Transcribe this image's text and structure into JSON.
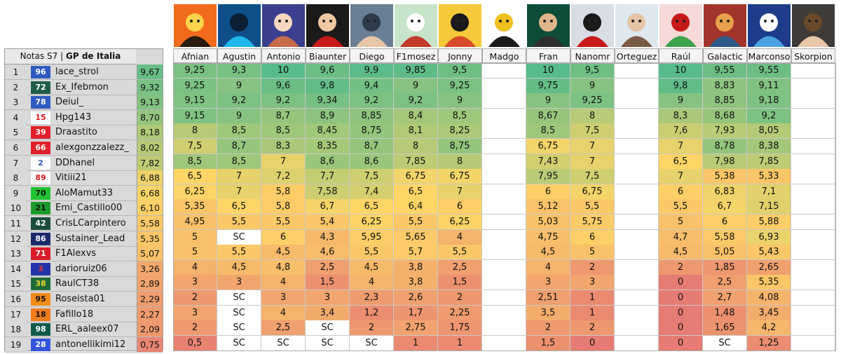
{
  "title": {
    "prefix": "Notas S7",
    "separator": "|",
    "race": "GP de Italia"
  },
  "raters": [
    {
      "name": "Afnian",
      "icon": "graffiti-logo-avatar"
    },
    {
      "name": "Agustin",
      "icon": "racer-avatar"
    },
    {
      "name": "Antonio",
      "icon": "anime-girl-avatar"
    },
    {
      "name": "Biaunter",
      "icon": "driver-car-avatar"
    },
    {
      "name": "Diego",
      "icon": "driver-portrait-avatar"
    },
    {
      "name": "F1mosez",
      "icon": "cartoon-avatar"
    },
    {
      "name": "Jonny",
      "icon": "cartoon-boy-avatar"
    },
    {
      "name": "Madgo",
      "icon": "pixel-trophy-avatar"
    },
    {
      "name": "Fran",
      "icon": "driver-trophy-avatar"
    },
    {
      "name": "Nanomr",
      "icon": "driver-celebrating-avatar"
    },
    {
      "name": "Orteguez",
      "icon": "man-portrait-avatar"
    },
    {
      "name": "Raúl",
      "icon": "christmas-dino-avatar"
    },
    {
      "name": "Galactic",
      "icon": "kart-avatar"
    },
    {
      "name": "Marconso",
      "icon": "cartoon-car-avatar"
    },
    {
      "name": "Skorpion",
      "icon": "selfie-avatar"
    }
  ],
  "rows": [
    {
      "rank": "1",
      "number": "96",
      "number_bg": "#2e5bbf",
      "number_color": "#ffffff",
      "user": "lace_strol",
      "avg": "9,67",
      "grades": [
        "9,25",
        "9,3",
        "10",
        "9,6",
        "9,9",
        "9,85",
        "9,5",
        "",
        "10",
        "9,5",
        "",
        "10",
        "9,55",
        "9,55",
        ""
      ]
    },
    {
      "rank": "2",
      "number": "72",
      "number_bg": "#1f5e4a",
      "number_color": "#ffffff",
      "user": "Ex_Ifebmon",
      "avg": "9,32",
      "grades": [
        "9,25",
        "9",
        "9,6",
        "9,8",
        "9,4",
        "9",
        "9,25",
        "",
        "9,75",
        "9",
        "",
        "9,8",
        "8,83",
        "9,11",
        ""
      ]
    },
    {
      "rank": "3",
      "number": "78",
      "number_bg": "#2e5bbf",
      "number_color": "#ffffff",
      "user": "Deiul_",
      "avg": "9,13",
      "grades": [
        "9,15",
        "9,2",
        "9,2",
        "9,34",
        "9,2",
        "9,2",
        "9",
        "",
        "9",
        "9,25",
        "",
        "9",
        "8,85",
        "9,18",
        ""
      ]
    },
    {
      "rank": "4",
      "number": "15",
      "number_bg": "#ffffff",
      "number_color": "#d11c1c",
      "user": "Hpg143",
      "avg": "8,70",
      "grades": [
        "9,15",
        "9",
        "8,7",
        "8,9",
        "8,85",
        "8,4",
        "8,5",
        "",
        "8,67",
        "8",
        "",
        "8,3",
        "8,68",
        "9,2",
        ""
      ]
    },
    {
      "rank": "5",
      "number": "39",
      "number_bg": "#e0202a",
      "number_color": "#ffffff",
      "user": "Draastito",
      "avg": "8,18",
      "grades": [
        "8",
        "8,5",
        "8,5",
        "8,45",
        "8,75",
        "8,1",
        "8,25",
        "",
        "8,5",
        "7,5",
        "",
        "7,6",
        "7,93",
        "8,05",
        ""
      ]
    },
    {
      "rank": "6",
      "number": "66",
      "number_bg": "#e0202a",
      "number_color": "#ffffff",
      "user": "alexgonzzalezz_",
      "avg": "8,02",
      "grades": [
        "7,5",
        "8,7",
        "8,3",
        "8,35",
        "8,7",
        "8",
        "8,75",
        "",
        "6,75",
        "7",
        "",
        "7",
        "8,78",
        "8,38",
        ""
      ]
    },
    {
      "rank": "7",
      "number": "2",
      "number_bg": "#ffffff",
      "number_color": "#2e5bbf",
      "user": "DDhanel",
      "avg": "7,82",
      "grades": [
        "8,5",
        "8,5",
        "7",
        "8,6",
        "8,6",
        "7,85",
        "8",
        "",
        "7,43",
        "7",
        "",
        "6,5",
        "7,98",
        "7,85",
        ""
      ]
    },
    {
      "rank": "8",
      "number": "89",
      "number_bg": "#ffffff",
      "number_color": "#d11c1c",
      "user": "Vitiii21",
      "avg": "6,88",
      "grades": [
        "6,5",
        "7",
        "7,2",
        "7,7",
        "7,5",
        "6,75",
        "6,75",
        "",
        "7,95",
        "7,5",
        "",
        "7",
        "5,38",
        "5,33",
        ""
      ]
    },
    {
      "rank": "9",
      "number": "70",
      "number_bg": "#22c233",
      "number_color": "#111111",
      "user": "AloMamut33",
      "avg": "6,68",
      "grades": [
        "6,25",
        "7",
        "5,8",
        "7,58",
        "7,4",
        "6,5",
        "7",
        "",
        "6",
        "6,75",
        "",
        "6",
        "6,83",
        "7,1",
        ""
      ]
    },
    {
      "rank": "10",
      "number": "21",
      "number_bg": "#1a9a2a",
      "number_color": "#111111",
      "user": "Emi_Castillo00",
      "avg": "6,10",
      "grades": [
        "5,35",
        "6,5",
        "5,8",
        "6,7",
        "6,5",
        "6,4",
        "6",
        "",
        "5,12",
        "5,5",
        "",
        "5,5",
        "6,7",
        "7,15",
        ""
      ]
    },
    {
      "rank": "11",
      "number": "42",
      "number_bg": "#1b4d3e",
      "number_color": "#ffffff",
      "user": "CrisLCarpintero",
      "avg": "5,58",
      "grades": [
        "4,95",
        "5,5",
        "5,5",
        "5,4",
        "6,25",
        "5,5",
        "6,25",
        "",
        "5,03",
        "5,75",
        "",
        "5",
        "6",
        "5,88",
        ""
      ]
    },
    {
      "rank": "12",
      "number": "86",
      "number_bg": "#1a2a6a",
      "number_color": "#ffffff",
      "user": "Sustainer_Lead",
      "avg": "5,35",
      "grades": [
        "5",
        "SC",
        "6",
        "4,3",
        "5,95",
        "5,65",
        "4",
        "",
        "4,75",
        "6",
        "",
        "4,7",
        "5,58",
        "6,93",
        ""
      ]
    },
    {
      "rank": "13",
      "number": "71",
      "number_bg": "#d81c2a",
      "number_color": "#ffffff",
      "user": "F1Alexvs",
      "avg": "5,07",
      "grades": [
        "5",
        "5,5",
        "4,5",
        "4,6",
        "5,5",
        "5,7",
        "5,5",
        "",
        "4,5",
        "5",
        "",
        "4,5",
        "5,05",
        "5,43",
        ""
      ]
    },
    {
      "rank": "14",
      "number": "3",
      "number_bg": "#2233aa",
      "number_color": "#e03030",
      "user": "darioruiz06",
      "avg": "3,26",
      "grades": [
        "4",
        "4,5",
        "4,8",
        "2,5",
        "4,5",
        "3,8",
        "2,5",
        "",
        "4",
        "2",
        "",
        "2",
        "1,85",
        "2,65",
        ""
      ]
    },
    {
      "rank": "15",
      "number": "38",
      "number_bg": "#1e6b3a",
      "number_color": "#e8d830",
      "user": "RaulCT38",
      "avg": "2,89",
      "grades": [
        "3",
        "3",
        "4",
        "1,5",
        "4",
        "3,8",
        "1,5",
        "",
        "3",
        "3",
        "",
        "0",
        "2,5",
        "5,35",
        ""
      ]
    },
    {
      "rank": "16",
      "number": "95",
      "number_bg": "#f08c1c",
      "number_color": "#111111",
      "user": "Roseista01",
      "avg": "2,29",
      "grades": [
        "2",
        "SC",
        "3",
        "3",
        "2,3",
        "2,6",
        "2",
        "",
        "2,51",
        "1",
        "",
        "0",
        "2,7",
        "4,08",
        ""
      ]
    },
    {
      "rank": "17",
      "number": "18",
      "number_bg": "#f07c1c",
      "number_color": "#111111",
      "user": "Fafillo18",
      "avg": "2,27",
      "grades": [
        "3",
        "SC",
        "4",
        "3,4",
        "1,2",
        "1,7",
        "2,25",
        "",
        "3,5",
        "1",
        "",
        "0",
        "1,48",
        "3,45",
        ""
      ]
    },
    {
      "rank": "18",
      "number": "98",
      "number_bg": "#0e5a4a",
      "number_color": "#ffffff",
      "user": "ERL_aaleex07",
      "avg": "2,09",
      "grades": [
        "2",
        "SC",
        "2,5",
        "SC",
        "2",
        "2,75",
        "1,75",
        "",
        "2",
        "2",
        "",
        "0",
        "1,65",
        "4,2",
        ""
      ]
    },
    {
      "rank": "19",
      "number": "28",
      "number_bg": "#3355dd",
      "number_color": "#ffffff",
      "user": "antonellikimi12",
      "avg": "0,75",
      "grades": [
        "0,5",
        "SC",
        "SC",
        "SC",
        "SC",
        "1",
        "1",
        "",
        "1,5",
        "0",
        "",
        "0",
        "SC",
        "1,25",
        ""
      ]
    }
  ],
  "colors": {
    "high": "#57bb8a",
    "mid": "#ffd666",
    "low": "#e67c73",
    "empty": "#ffffff",
    "header_bg": "#f4f4f4",
    "rank_bg": "#d9d9d9"
  }
}
